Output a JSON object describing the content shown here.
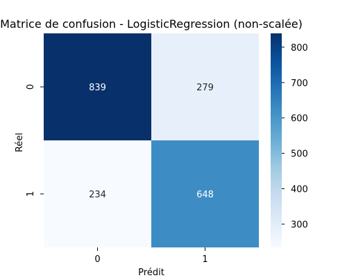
{
  "chart_data": {
    "type": "heatmap",
    "title": "Matrice de confusion - LogisticRegression (non-scalée)",
    "xlabel": "Prédit",
    "ylabel": "Réel",
    "x_categories": [
      "0",
      "1"
    ],
    "y_categories": [
      "0",
      "1"
    ],
    "values": [
      [
        839,
        279
      ],
      [
        234,
        648
      ]
    ],
    "colormap": "Blues",
    "colorbar": {
      "range": [
        234,
        839
      ],
      "ticks": [
        300,
        400,
        500,
        600,
        700,
        800
      ]
    },
    "cell_colors": [
      [
        "#08306b",
        "#e7f0fa"
      ],
      [
        "#f7fbff",
        "#3d8dc4"
      ]
    ]
  }
}
